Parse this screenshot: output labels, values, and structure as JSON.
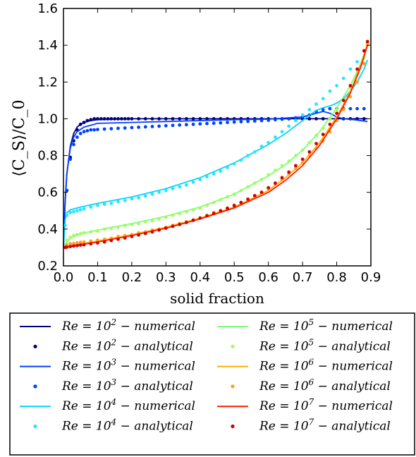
{
  "chart_data": {
    "type": "line",
    "xlabel": "solid fraction",
    "ylabel": "⟨C_S⟩/C_0",
    "xlim": [
      0.0,
      0.9
    ],
    "ylim": [
      0.2,
      1.6
    ],
    "xticks": [
      "0.0",
      "0.1",
      "0.2",
      "0.3",
      "0.4",
      "0.5",
      "0.6",
      "0.7",
      "0.8",
      "0.9"
    ],
    "yticks": [
      "0.2",
      "0.4",
      "0.6",
      "0.8",
      "1.0",
      "1.2",
      "1.4",
      "1.6"
    ],
    "grid": false,
    "legend_position": "below",
    "series": [
      {
        "name": "Re = 10^2 − numerical",
        "color": "#00007f",
        "kind": "line",
        "x": [
          0.0,
          0.005,
          0.01,
          0.02,
          0.03,
          0.04,
          0.05,
          0.06,
          0.08,
          0.1,
          0.2,
          0.4,
          0.6,
          0.8,
          0.89
        ],
        "y": [
          0.3,
          0.55,
          0.7,
          0.85,
          0.92,
          0.955,
          0.97,
          0.98,
          0.99,
          0.995,
          1.0,
          1.0,
          1.0,
          1.0,
          1.0
        ]
      },
      {
        "name": "Re = 10^2 − analytical",
        "color": "#00007f",
        "kind": "dots",
        "x": [
          0.01,
          0.02,
          0.03,
          0.04,
          0.05,
          0.06,
          0.07,
          0.08,
          0.09,
          0.1,
          0.11,
          0.12,
          0.13,
          0.14,
          0.15,
          0.16,
          0.17,
          0.18,
          0.19,
          0.2,
          0.22,
          0.24,
          0.26,
          0.28,
          0.3,
          0.32,
          0.34,
          0.36,
          0.38,
          0.4,
          0.42,
          0.44,
          0.46,
          0.48,
          0.5,
          0.52,
          0.54,
          0.56,
          0.58,
          0.6,
          0.62,
          0.64,
          0.66,
          0.68,
          0.7,
          0.72,
          0.74,
          0.76,
          0.78,
          0.8,
          0.82,
          0.84,
          0.86,
          0.88
        ],
        "y": [
          0.61,
          0.79,
          0.88,
          0.94,
          0.97,
          0.98,
          0.99,
          0.995,
          1.0,
          1.0,
          1.0,
          1.0,
          1.0,
          1.0,
          1.0,
          1.0,
          1.0,
          1.0,
          1.0,
          1.0,
          1.0,
          1.0,
          1.0,
          1.0,
          1.0,
          1.0,
          1.0,
          1.0,
          1.0,
          1.0,
          1.0,
          1.0,
          1.0,
          1.0,
          1.0,
          1.0,
          1.0,
          1.0,
          1.0,
          1.0,
          1.0,
          1.0,
          1.0,
          1.0,
          1.0,
          1.0,
          1.0,
          1.0,
          1.0,
          1.0,
          1.0,
          1.0,
          1.0,
          1.0
        ]
      },
      {
        "name": "Re = 10^3 − numerical",
        "color": "#0040ff",
        "kind": "line",
        "x": [
          0.0,
          0.005,
          0.01,
          0.02,
          0.03,
          0.04,
          0.06,
          0.08,
          0.1,
          0.2,
          0.3,
          0.4,
          0.5,
          0.6,
          0.7,
          0.74,
          0.76,
          0.78,
          0.8,
          0.82,
          0.85,
          0.89
        ],
        "y": [
          0.3,
          0.55,
          0.7,
          0.84,
          0.9,
          0.93,
          0.955,
          0.965,
          0.975,
          0.98,
          0.985,
          0.99,
          0.995,
          0.998,
          1.01,
          1.03,
          1.04,
          1.03,
          1.01,
          1.0,
          0.995,
          0.985
        ]
      },
      {
        "name": "Re = 10^3 − analytical",
        "color": "#0040ff",
        "kind": "dots",
        "x": [
          0.01,
          0.02,
          0.03,
          0.04,
          0.05,
          0.06,
          0.07,
          0.08,
          0.09,
          0.1,
          0.12,
          0.14,
          0.16,
          0.18,
          0.2,
          0.22,
          0.24,
          0.26,
          0.28,
          0.3,
          0.32,
          0.34,
          0.36,
          0.38,
          0.4,
          0.42,
          0.44,
          0.46,
          0.48,
          0.5,
          0.52,
          0.54,
          0.56,
          0.58,
          0.6,
          0.62,
          0.64,
          0.66,
          0.68,
          0.7,
          0.72,
          0.74,
          0.76,
          0.78,
          0.8,
          0.82,
          0.84,
          0.86,
          0.88
        ],
        "y": [
          0.61,
          0.78,
          0.86,
          0.9,
          0.92,
          0.93,
          0.935,
          0.94,
          0.94,
          0.942,
          0.944,
          0.946,
          0.948,
          0.95,
          0.952,
          0.954,
          0.956,
          0.958,
          0.96,
          0.962,
          0.964,
          0.966,
          0.968,
          0.97,
          0.972,
          0.974,
          0.976,
          0.978,
          0.98,
          0.982,
          0.984,
          0.986,
          0.988,
          0.99,
          0.992,
          0.995,
          0.998,
          1.0,
          1.005,
          1.01,
          1.02,
          1.04,
          1.05,
          1.055,
          1.055,
          1.055,
          1.055,
          1.055,
          1.055
        ]
      },
      {
        "name": "Re = 10^4 − numerical",
        "color": "#00d4ff",
        "kind": "line",
        "x": [
          0.0,
          0.005,
          0.01,
          0.02,
          0.05,
          0.1,
          0.2,
          0.3,
          0.4,
          0.5,
          0.6,
          0.65,
          0.7,
          0.72,
          0.74,
          0.76,
          0.78,
          0.8,
          0.82,
          0.84,
          0.86,
          0.88,
          0.89
        ],
        "y": [
          0.3,
          0.45,
          0.49,
          0.505,
          0.52,
          0.54,
          0.575,
          0.62,
          0.68,
          0.76,
          0.86,
          0.92,
          0.99,
          1.02,
          1.045,
          1.06,
          1.07,
          1.085,
          1.11,
          1.15,
          1.2,
          1.27,
          1.32
        ]
      },
      {
        "name": "Re = 10^4 − analytical",
        "color": "#29e5ff",
        "kind": "dots",
        "x": [
          0.005,
          0.01,
          0.02,
          0.03,
          0.04,
          0.05,
          0.06,
          0.08,
          0.1,
          0.12,
          0.14,
          0.16,
          0.18,
          0.2,
          0.22,
          0.24,
          0.26,
          0.28,
          0.3,
          0.32,
          0.34,
          0.36,
          0.38,
          0.4,
          0.42,
          0.44,
          0.46,
          0.48,
          0.5,
          0.52,
          0.54,
          0.56,
          0.58,
          0.6,
          0.62,
          0.64,
          0.66,
          0.68,
          0.7,
          0.72,
          0.74,
          0.76,
          0.78,
          0.8,
          0.82,
          0.84,
          0.86,
          0.88
        ],
        "y": [
          0.42,
          0.475,
          0.49,
          0.495,
          0.5,
          0.505,
          0.51,
          0.52,
          0.53,
          0.535,
          0.54,
          0.55,
          0.555,
          0.565,
          0.57,
          0.58,
          0.59,
          0.6,
          0.61,
          0.62,
          0.63,
          0.64,
          0.655,
          0.67,
          0.685,
          0.7,
          0.715,
          0.735,
          0.755,
          0.775,
          0.8,
          0.82,
          0.85,
          0.87,
          0.9,
          0.93,
          0.96,
          0.99,
          1.02,
          1.05,
          1.08,
          1.11,
          1.15,
          1.18,
          1.22,
          1.27,
          1.31,
          1.37
        ]
      },
      {
        "name": "Re = 10^5 − numerical",
        "color": "#7dff7a",
        "kind": "line",
        "x": [
          0.0,
          0.01,
          0.02,
          0.05,
          0.1,
          0.2,
          0.3,
          0.4,
          0.5,
          0.6,
          0.65,
          0.7,
          0.75,
          0.8,
          0.84,
          0.87,
          0.89
        ],
        "y": [
          0.3,
          0.33,
          0.35,
          0.375,
          0.395,
          0.43,
          0.47,
          0.52,
          0.59,
          0.69,
          0.75,
          0.83,
          0.93,
          1.06,
          1.18,
          1.3,
          1.4
        ]
      },
      {
        "name": "Re = 10^5 − analytical",
        "color": "#9dff5a",
        "kind": "dots",
        "x": [
          0.01,
          0.02,
          0.03,
          0.04,
          0.05,
          0.06,
          0.08,
          0.1,
          0.12,
          0.14,
          0.16,
          0.18,
          0.2,
          0.22,
          0.24,
          0.26,
          0.28,
          0.3,
          0.32,
          0.34,
          0.36,
          0.38,
          0.4,
          0.42,
          0.44,
          0.46,
          0.48,
          0.5,
          0.52,
          0.54,
          0.56,
          0.58,
          0.6,
          0.62,
          0.64,
          0.66,
          0.68,
          0.7,
          0.72,
          0.74,
          0.76,
          0.78,
          0.8,
          0.82,
          0.84,
          0.86,
          0.88,
          0.89
        ],
        "y": [
          0.34,
          0.355,
          0.365,
          0.37,
          0.375,
          0.38,
          0.385,
          0.39,
          0.4,
          0.405,
          0.41,
          0.42,
          0.425,
          0.43,
          0.44,
          0.445,
          0.455,
          0.465,
          0.475,
          0.485,
          0.495,
          0.505,
          0.515,
          0.53,
          0.545,
          0.56,
          0.575,
          0.59,
          0.61,
          0.63,
          0.65,
          0.67,
          0.695,
          0.72,
          0.745,
          0.77,
          0.8,
          0.83,
          0.87,
          0.91,
          0.95,
          1.0,
          1.05,
          1.1,
          1.17,
          1.24,
          1.33,
          1.4
        ]
      },
      {
        "name": "Re = 10^6 − numerical",
        "color": "#ffb000",
        "kind": "line",
        "x": [
          0.0,
          0.02,
          0.05,
          0.1,
          0.2,
          0.3,
          0.4,
          0.5,
          0.6,
          0.65,
          0.7,
          0.75,
          0.8,
          0.84,
          0.87,
          0.89
        ],
        "y": [
          0.3,
          0.31,
          0.32,
          0.335,
          0.37,
          0.41,
          0.46,
          0.52,
          0.61,
          0.68,
          0.76,
          0.87,
          1.01,
          1.15,
          1.29,
          1.41
        ]
      },
      {
        "name": "Re = 10^6 − analytical",
        "color": "#ffa020",
        "kind": "dots",
        "x": [
          0.01,
          0.02,
          0.03,
          0.04,
          0.05,
          0.06,
          0.08,
          0.1,
          0.12,
          0.14,
          0.16,
          0.18,
          0.2,
          0.22,
          0.24,
          0.26,
          0.28,
          0.3,
          0.32,
          0.34,
          0.36,
          0.38,
          0.4,
          0.42,
          0.44,
          0.46,
          0.48,
          0.5,
          0.52,
          0.54,
          0.56,
          0.58,
          0.6,
          0.62,
          0.64,
          0.66,
          0.68,
          0.7,
          0.72,
          0.74,
          0.76,
          0.78,
          0.8,
          0.82,
          0.84,
          0.86,
          0.88,
          0.89
        ],
        "y": [
          0.315,
          0.32,
          0.322,
          0.325,
          0.328,
          0.33,
          0.335,
          0.34,
          0.345,
          0.35,
          0.36,
          0.365,
          0.37,
          0.38,
          0.385,
          0.395,
          0.4,
          0.41,
          0.42,
          0.43,
          0.44,
          0.45,
          0.46,
          0.475,
          0.49,
          0.5,
          0.515,
          0.53,
          0.545,
          0.56,
          0.58,
          0.6,
          0.62,
          0.645,
          0.67,
          0.7,
          0.73,
          0.76,
          0.8,
          0.84,
          0.88,
          0.93,
          0.99,
          1.05,
          1.12,
          1.2,
          1.3,
          1.41
        ]
      },
      {
        "name": "Re = 10^7 − numerical",
        "color": "#ff1a00",
        "kind": "line",
        "x": [
          0.0,
          0.02,
          0.05,
          0.1,
          0.2,
          0.3,
          0.4,
          0.5,
          0.6,
          0.65,
          0.7,
          0.75,
          0.8,
          0.84,
          0.87,
          0.89
        ],
        "y": [
          0.3,
          0.305,
          0.315,
          0.33,
          0.365,
          0.405,
          0.455,
          0.515,
          0.6,
          0.665,
          0.745,
          0.855,
          1.0,
          1.14,
          1.28,
          1.4
        ]
      },
      {
        "name": "Re = 10^7 − analytical",
        "color": "#d00000",
        "kind": "dots",
        "x": [
          0.005,
          0.01,
          0.02,
          0.03,
          0.04,
          0.05,
          0.06,
          0.08,
          0.1,
          0.12,
          0.14,
          0.16,
          0.18,
          0.2,
          0.22,
          0.24,
          0.26,
          0.28,
          0.3,
          0.32,
          0.34,
          0.36,
          0.38,
          0.4,
          0.42,
          0.44,
          0.46,
          0.48,
          0.5,
          0.52,
          0.54,
          0.56,
          0.58,
          0.6,
          0.62,
          0.64,
          0.66,
          0.68,
          0.7,
          0.72,
          0.74,
          0.76,
          0.78,
          0.8,
          0.82,
          0.84,
          0.86,
          0.88,
          0.89
        ],
        "y": [
          0.3,
          0.302,
          0.305,
          0.308,
          0.31,
          0.313,
          0.315,
          0.32,
          0.325,
          0.33,
          0.338,
          0.345,
          0.352,
          0.36,
          0.368,
          0.376,
          0.385,
          0.395,
          0.405,
          0.415,
          0.425,
          0.436,
          0.448,
          0.46,
          0.472,
          0.485,
          0.5,
          0.513,
          0.528,
          0.545,
          0.563,
          0.582,
          0.6,
          0.625,
          0.65,
          0.68,
          0.71,
          0.745,
          0.78,
          0.82,
          0.865,
          0.915,
          0.97,
          1.03,
          1.1,
          1.18,
          1.27,
          1.37,
          1.42
        ]
      }
    ],
    "legend": [
      {
        "base": "Re = 10",
        "exp": "2",
        "suffix": "− numerical",
        "color": "#00007f",
        "kind": "line"
      },
      {
        "base": "Re = 10",
        "exp": "5",
        "suffix": "− numerical",
        "color": "#7dff7a",
        "kind": "line"
      },
      {
        "base": "Re = 10",
        "exp": "2",
        "suffix": "− analytical",
        "color": "#00007f",
        "kind": "dots"
      },
      {
        "base": "Re = 10",
        "exp": "5",
        "suffix": "− analytical",
        "color": "#9dff5a",
        "kind": "dots"
      },
      {
        "base": "Re = 10",
        "exp": "3",
        "suffix": "− numerical",
        "color": "#0040ff",
        "kind": "line"
      },
      {
        "base": "Re = 10",
        "exp": "6",
        "suffix": "− numerical",
        "color": "#ffb000",
        "kind": "line"
      },
      {
        "base": "Re = 10",
        "exp": "3",
        "suffix": "− analytical",
        "color": "#0040ff",
        "kind": "dots"
      },
      {
        "base": "Re = 10",
        "exp": "6",
        "suffix": "− analytical",
        "color": "#ffa020",
        "kind": "dots"
      },
      {
        "base": "Re = 10",
        "exp": "4",
        "suffix": "− numerical",
        "color": "#00d4ff",
        "kind": "line"
      },
      {
        "base": "Re = 10",
        "exp": "7",
        "suffix": "− numerical",
        "color": "#ff1a00",
        "kind": "line"
      },
      {
        "base": "Re = 10",
        "exp": "4",
        "suffix": "− analytical",
        "color": "#29e5ff",
        "kind": "dots"
      },
      {
        "base": "Re = 10",
        "exp": "7",
        "suffix": "− analytical",
        "color": "#d00000",
        "kind": "dots"
      }
    ]
  }
}
